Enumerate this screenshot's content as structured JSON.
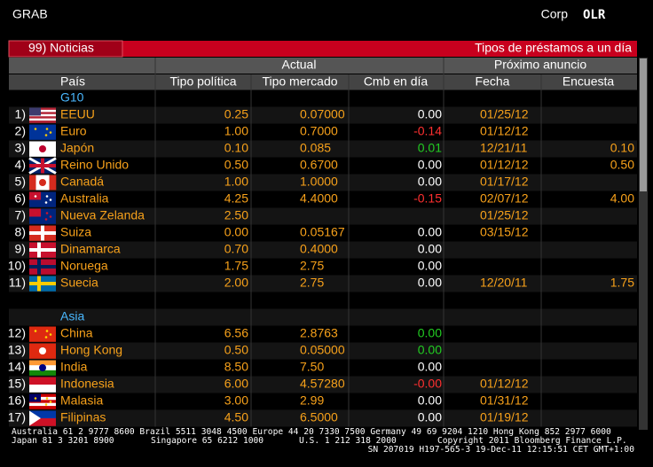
{
  "header": {
    "left": "GRAB",
    "corp": "Corp",
    "code": "OLR"
  },
  "bar": {
    "left": "99) Noticias",
    "right": "Tipos de préstamos a un día"
  },
  "table": {
    "group_headers": [
      "Actual",
      "Próximo anuncio"
    ],
    "columns": [
      "País",
      "Tipo política",
      "Tipo mercado",
      "Cmb en día",
      "Fecha",
      "Encuesta"
    ],
    "groups": [
      {
        "name": "G10",
        "rows": [
          {
            "index": "1)",
            "country": "EEUU",
            "policy": "0.25",
            "market": "0.07000",
            "change": "0.00",
            "change_color": "#ffffff",
            "date": "01/25/12"
          },
          {
            "index": "2)",
            "country": "Euro",
            "policy": "1.00",
            "market": "0.7000",
            "change": "-0.14",
            "change_color": "#ff3030",
            "date": "01/12/12"
          },
          {
            "index": "3)",
            "country": "Japón",
            "policy": "0.10",
            "market": "0.085",
            "change": "0.01",
            "change_color": "#22cc22",
            "date": "12/21/11",
            "survey": "0.10"
          },
          {
            "index": "4)",
            "country": "Reino Unido",
            "policy": "0.50",
            "market": "0.6700",
            "change": "0.00",
            "change_color": "#ffffff",
            "date": "01/12/12",
            "survey": "0.50"
          },
          {
            "index": "5)",
            "country": "Canadá",
            "policy": "1.00",
            "market": "1.0000",
            "change": "0.00",
            "change_color": "#ffffff",
            "date": "01/17/12"
          },
          {
            "index": "6)",
            "country": "Australia",
            "policy": "4.25",
            "market": "4.4000",
            "change": "-0.15",
            "change_color": "#ff3030",
            "date": "02/07/12",
            "survey": "4.00"
          },
          {
            "index": "7)",
            "country": "Nueva Zelanda",
            "policy": "2.50",
            "date": "01/25/12"
          },
          {
            "index": "8)",
            "country": "Suiza",
            "policy": "0.00",
            "market": "0.05167",
            "change": "0.00",
            "change_color": "#ffffff",
            "date": "03/15/12"
          },
          {
            "index": "9)",
            "country": "Dinamarca",
            "policy": "0.70",
            "market": "0.4000",
            "change": "0.00",
            "change_color": "#ffffff"
          },
          {
            "index": "10)",
            "country": "Noruega",
            "policy": "1.75",
            "market": "2.75",
            "change": "0.00",
            "change_color": "#ffffff"
          },
          {
            "index": "11)",
            "country": "Suecia",
            "policy": "2.00",
            "market": "2.75",
            "change": "0.00",
            "change_color": "#ffffff",
            "date": "12/20/11",
            "survey": "1.75"
          }
        ]
      },
      {
        "name": "Asia",
        "rows": [
          {
            "index": "12)",
            "country": "China",
            "policy": "6.56",
            "market": "2.8763",
            "change": "0.00",
            "change_color": "#22cc22"
          },
          {
            "index": "13)",
            "country": "Hong Kong",
            "policy": "0.50",
            "market": "0.05000",
            "change": "0.00",
            "change_color": "#22cc22"
          },
          {
            "index": "14)",
            "country": "India",
            "policy": "8.50",
            "market": "7.50",
            "change": "0.00",
            "change_color": "#ffffff"
          },
          {
            "index": "15)",
            "country": "Indonesia",
            "policy": "6.00",
            "market": "4.57280",
            "change": "-0.00",
            "change_color": "#ff3030",
            "date": "01/12/12"
          },
          {
            "index": "16)",
            "country": "Malasia",
            "policy": "3.00",
            "market": "2.99",
            "change": "0.00",
            "change_color": "#ffffff",
            "date": "01/31/12"
          },
          {
            "index": "17)",
            "country": "Filipinas",
            "policy": "4.50",
            "market": "6.5000",
            "change": "0.00",
            "change_color": "#ffffff",
            "date": "01/19/12"
          }
        ]
      }
    ]
  },
  "footer": {
    "line1": "Australia 61 2 9777 8600 Brazil 5511 3048 4500 Europe 44 20 7330 7500 Germany 49 69 9204 1210 Hong Kong 852 2977 6000",
    "line2": [
      "Japan 81 3 3201 8900",
      "Singapore 65 6212 1000",
      "U.S. 1 212 318 2000",
      "Copyright 2011 Bloomberg Finance L.P."
    ],
    "line3": "SN 207019 H197-565-3 19-Dec-11 12:15:51 CET  GMT+1:00"
  }
}
